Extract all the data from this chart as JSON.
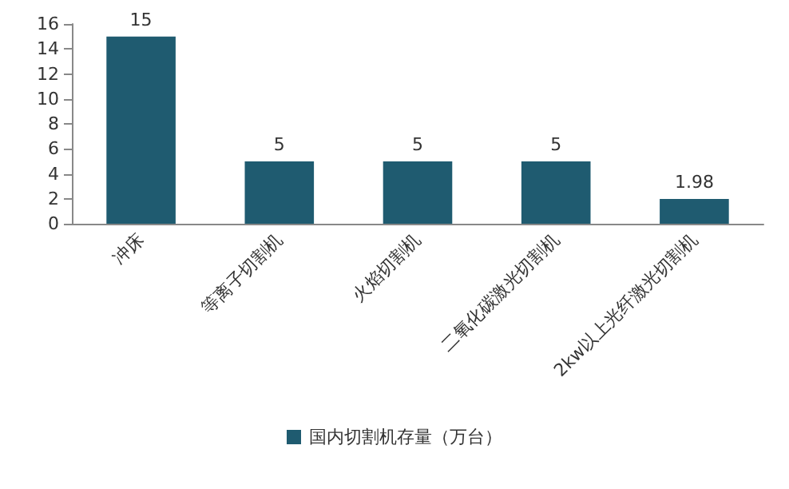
{
  "chart_data": {
    "type": "bar",
    "categories": [
      "冲床",
      "等离子切割机",
      "火焰切割机",
      "二氧化碳激光切割机",
      "2kw以上光纤激光切割机"
    ],
    "series": [
      {
        "name": "国内切割机存量（万台）",
        "color": "#1f5b70",
        "values": [
          15,
          5,
          5,
          5,
          1.98
        ]
      }
    ],
    "ylim": [
      0,
      16
    ],
    "yticks": [
      0,
      2,
      4,
      6,
      8,
      10,
      12,
      14,
      16
    ],
    "grid": false,
    "legend": "bottom",
    "data_labels": true
  }
}
